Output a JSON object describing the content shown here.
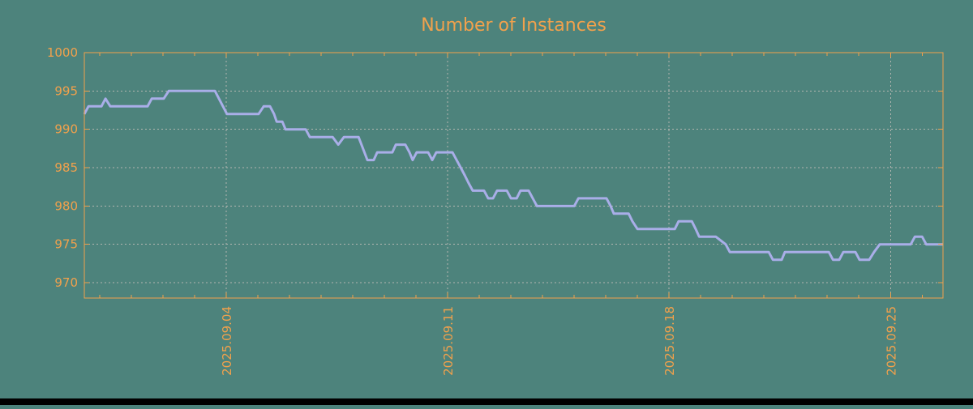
{
  "colors": {
    "background": "#4d837c",
    "orange": "#f1a14c",
    "line": "#a9aee8",
    "grid": "#b2b6b0",
    "bottom_bar": "#000000"
  },
  "chart_data": {
    "type": "line",
    "title": "Number of Instances",
    "xlabel": "",
    "ylabel": "",
    "grid": {
      "x_major": true,
      "y_major": true,
      "style": "dashed"
    },
    "legend": null,
    "x_axis": {
      "unit": "days (t=0 at left edge of plot, ~2025.08.30)",
      "range": [
        0,
        27.15
      ],
      "labels_rotated_90": true,
      "major_ticks": [
        {
          "label": "2025.09.04",
          "t": 4.49
        },
        {
          "label": "2025.09.11",
          "t": 11.49
        },
        {
          "label": "2025.09.18",
          "t": 18.49
        },
        {
          "label": "2025.09.25",
          "t": 25.49
        }
      ],
      "minor_tick_start": 0.49,
      "minor_tick_interval": 1,
      "minor_tick_count": 27
    },
    "y_axis": {
      "range": [
        968,
        1000
      ],
      "ticks": [
        970,
        975,
        980,
        985,
        990,
        995,
        1000
      ]
    },
    "series": [
      {
        "name": "instances",
        "points": [
          [
            0,
            992
          ],
          [
            0.13,
            993
          ],
          [
            0.54,
            993
          ],
          [
            0.67,
            994
          ],
          [
            0.82,
            993
          ],
          [
            2.0,
            993
          ],
          [
            2.13,
            994
          ],
          [
            2.51,
            994
          ],
          [
            2.67,
            995
          ],
          [
            4.13,
            995
          ],
          [
            4.51,
            992
          ],
          [
            5.51,
            992
          ],
          [
            5.67,
            993
          ],
          [
            5.87,
            993
          ],
          [
            6.0,
            992
          ],
          [
            6.08,
            991
          ],
          [
            6.26,
            991
          ],
          [
            6.36,
            990
          ],
          [
            7.0,
            990
          ],
          [
            7.13,
            989
          ],
          [
            7.85,
            989
          ],
          [
            8.03,
            988
          ],
          [
            8.21,
            989
          ],
          [
            8.67,
            989
          ],
          [
            8.95,
            986
          ],
          [
            9.15,
            986
          ],
          [
            9.26,
            987
          ],
          [
            9.74,
            987
          ],
          [
            9.85,
            988
          ],
          [
            10.15,
            988
          ],
          [
            10.28,
            987
          ],
          [
            10.38,
            986
          ],
          [
            10.51,
            987
          ],
          [
            10.87,
            987
          ],
          [
            11.0,
            986
          ],
          [
            11.13,
            987
          ],
          [
            11.64,
            987
          ],
          [
            11.77,
            986
          ],
          [
            11.9,
            985
          ],
          [
            12.03,
            984
          ],
          [
            12.15,
            983
          ],
          [
            12.28,
            982
          ],
          [
            12.64,
            982
          ],
          [
            12.77,
            981
          ],
          [
            12.92,
            981
          ],
          [
            13.05,
            982
          ],
          [
            13.36,
            982
          ],
          [
            13.49,
            981
          ],
          [
            13.67,
            981
          ],
          [
            13.79,
            982
          ],
          [
            14.05,
            982
          ],
          [
            14.18,
            981
          ],
          [
            14.31,
            980
          ],
          [
            15.49,
            980
          ],
          [
            15.62,
            981
          ],
          [
            16.51,
            981
          ],
          [
            16.64,
            980
          ],
          [
            16.74,
            979
          ],
          [
            17.21,
            979
          ],
          [
            17.33,
            978
          ],
          [
            17.49,
            977
          ],
          [
            18.67,
            977
          ],
          [
            18.79,
            978
          ],
          [
            19.21,
            978
          ],
          [
            19.33,
            977
          ],
          [
            19.44,
            976
          ],
          [
            19.97,
            976
          ],
          [
            20.28,
            975
          ],
          [
            20.41,
            974
          ],
          [
            21.64,
            974
          ],
          [
            21.77,
            973
          ],
          [
            22.05,
            973
          ],
          [
            22.15,
            974
          ],
          [
            23.54,
            974
          ],
          [
            23.67,
            973
          ],
          [
            23.87,
            973
          ],
          [
            24.0,
            974
          ],
          [
            24.38,
            974
          ],
          [
            24.51,
            973
          ],
          [
            24.82,
            973
          ],
          [
            24.97,
            974
          ],
          [
            25.15,
            975
          ],
          [
            26.13,
            975
          ],
          [
            26.26,
            976
          ],
          [
            26.49,
            976
          ],
          [
            26.62,
            975
          ],
          [
            27.15,
            975
          ]
        ]
      }
    ]
  }
}
